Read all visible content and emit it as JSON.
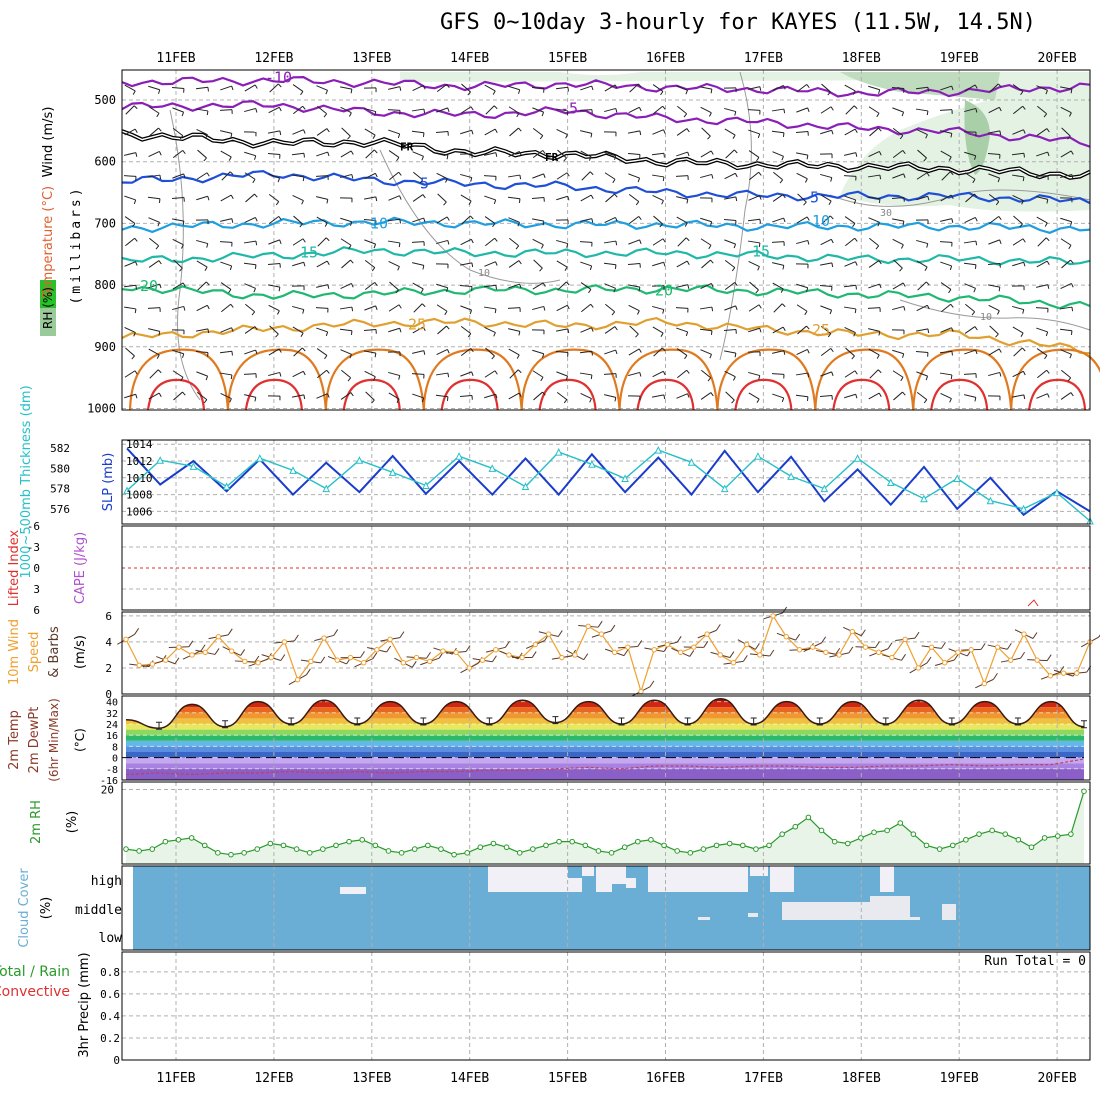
{
  "title": "GFS 0~10day 3-hourly for KAYES (11.5W, 14.5N)",
  "dates": [
    "11FEB",
    "12FEB",
    "13FEB",
    "14FEB",
    "15FEB",
    "16FEB",
    "17FEB",
    "18FEB",
    "19FEB",
    "20FEB"
  ],
  "colors": {
    "purple": "#8a1fb8",
    "blue": "#1f4fd6",
    "lightblue": "#1f9ee0",
    "teal": "#1fb8a8",
    "green": "#1fb870",
    "orange": "#e0a030",
    "darkorange": "#e07a20",
    "red": "#e03030",
    "cyan": "#27c0c8",
    "slp": "#1a3ccc",
    "wind10": "#f0a030",
    "rh2m": "#2a9a2a",
    "cloudbg": "#6aaed6",
    "cloudclear": "#f2f0f7"
  },
  "chart_data": [
    {
      "type": "line",
      "panel": "upper-air",
      "ylabel_wind": "Wind (m/s)",
      "ylabel_temp": "Temperature (°C)",
      "ylabel_rh": "RH (%)",
      "ylabel_units": "(millibars)",
      "yticks": [
        "500",
        "600",
        "700",
        "800",
        "900",
        "1000"
      ],
      "ylim": [
        1000,
        450
      ],
      "x": [
        "11FEB",
        "12FEB",
        "13FEB",
        "14FEB",
        "15FEB",
        "16FEB",
        "17FEB",
        "18FEB",
        "19FEB",
        "20FEB"
      ],
      "isotherm_labels": [
        "-10",
        "-5",
        "FR",
        "5",
        "10",
        "15",
        "20",
        "25"
      ],
      "rh_contour_labels": [
        "10",
        "30"
      ],
      "series": [
        {
          "name": "-10",
          "color": "purple",
          "values": [
            470,
            468,
            472,
            478,
            474,
            480,
            483,
            489,
            486,
            480
          ]
        },
        {
          "name": "-5",
          "color": "purple",
          "values": [
            510,
            508,
            520,
            524,
            518,
            530,
            536,
            546,
            552,
            565
          ]
        },
        {
          "name": "FR",
          "color": "black",
          "values": [
            560,
            570,
            568,
            585,
            588,
            600,
            605,
            608,
            612,
            620
          ]
        },
        {
          "name": "5",
          "color": "blue",
          "values": [
            628,
            620,
            630,
            636,
            640,
            650,
            655,
            656,
            656,
            662
          ]
        },
        {
          "name": "10",
          "color": "lightblue",
          "values": [
            705,
            700,
            698,
            700,
            702,
            702,
            705,
            705,
            705,
            708
          ]
        },
        {
          "name": "15",
          "color": "teal",
          "values": [
            758,
            752,
            744,
            748,
            748,
            748,
            752,
            758,
            758,
            762
          ]
        },
        {
          "name": "20",
          "color": "green",
          "values": [
            808,
            818,
            814,
            808,
            808,
            806,
            810,
            815,
            820,
            830
          ]
        },
        {
          "name": "25",
          "color": "orange",
          "values": [
            880,
            870,
            862,
            860,
            866,
            860,
            872,
            880,
            880,
            900
          ]
        }
      ]
    },
    {
      "type": "line",
      "panel": "thickness-slp",
      "ylabel_left": "1000~500mb Thickness (dm)",
      "ylabel_right": "SLP (mb)",
      "yticks_left": [
        "576",
        "578",
        "580",
        "582"
      ],
      "yticks_right": [
        "1006",
        "1008",
        "1010",
        "1012",
        "1014"
      ],
      "ylim_left": [
        574.5,
        582.8
      ],
      "ylim_right": [
        1004.5,
        1014.5
      ],
      "series": [
        {
          "name": "SLP (mb)",
          "color": "slp",
          "values": [
            1013.5,
            1009.2,
            1012.0,
            1008.4,
            1012.2,
            1008.0,
            1011.8,
            1008.3,
            1012.6,
            1008.1,
            1012.0,
            1008.0,
            1012.3,
            1008.0,
            1012.8,
            1008.3,
            1012.4,
            1008.0,
            1013.2,
            1008.3,
            1012.5,
            1007.2,
            1011.0,
            1006.8,
            1011.3,
            1006.3,
            1010.0,
            1005.6,
            1008.4,
            1006.0
          ]
        },
        {
          "name": "1000~500mb Thickness (dm)",
          "color": "cyan",
          "values": [
            577.8,
            580.8,
            580.2,
            578.2,
            581.0,
            579.8,
            578.0,
            580.8,
            579.6,
            578.3,
            581.2,
            580.0,
            578.2,
            581.6,
            580.4,
            579.0,
            581.8,
            580.6,
            578.0,
            581.2,
            579.2,
            578.0,
            581.0,
            578.6,
            577.0,
            579.0,
            576.8,
            576.0,
            577.6,
            574.8
          ]
        }
      ]
    },
    {
      "type": "line",
      "panel": "stability",
      "ylabel_left": "Lifted Index",
      "ylabel_right": "CAPE (J/kg)",
      "yticks": [
        "-6",
        "-3",
        "0",
        "3",
        "6"
      ],
      "ylim": [
        -6,
        6
      ],
      "series": []
    },
    {
      "type": "line",
      "panel": "wind10m",
      "ylabel": "10m Wind Speed & Barbs",
      "yunit": "(m/s)",
      "yticks": [
        "0",
        "2",
        "4",
        "6"
      ],
      "ylim": [
        0,
        6.3
      ],
      "series": [
        {
          "name": "10m Wind Speed",
          "color": "wind10",
          "values": [
            4.2,
            2.2,
            2.3,
            2.6,
            3.6,
            3.0,
            3.2,
            4.4,
            3.3,
            2.5,
            2.4,
            2.8,
            4.0,
            1.1,
            2.5,
            4.3,
            2.6,
            2.8,
            2.4,
            3.4,
            4.2,
            2.4,
            2.8,
            2.5,
            3.3,
            3.2,
            2.0,
            2.6,
            3.4,
            3.0,
            2.8,
            3.8,
            4.6,
            2.8,
            3.0,
            5.2,
            4.6,
            3.2,
            3.6,
            0.2,
            3.4,
            3.8,
            3.2,
            3.6,
            4.6,
            3.0,
            2.4,
            3.8,
            3.0,
            6.0,
            4.4,
            3.4,
            3.6,
            3.2,
            3.0,
            4.8,
            3.6,
            3.2,
            2.8,
            4.2,
            2.0,
            3.6,
            2.4,
            3.2,
            3.4,
            0.8,
            3.6,
            2.6,
            4.6,
            2.6,
            1.4,
            1.6,
            1.6,
            4.0
          ]
        }
      ]
    },
    {
      "type": "area",
      "panel": "temp2m",
      "ylabel": "2m Temp 2m DewPt (6hr Min/Max) (°C)",
      "yticks": [
        "-16",
        "-8",
        "0",
        "8",
        "16",
        "24",
        "32",
        "40"
      ],
      "ylim": [
        -16,
        44
      ],
      "series": [
        {
          "name": "2m Temp",
          "color": "darkred",
          "values": [
            27,
            21,
            38,
            22,
            40,
            24,
            41,
            24,
            40,
            24,
            40,
            24,
            41,
            25,
            40,
            24,
            41,
            24,
            42,
            24,
            40,
            24,
            40,
            24,
            41,
            24,
            40,
            24,
            40,
            22
          ]
        },
        {
          "name": "2m DewPt",
          "color": "brown",
          "values": [
            -12,
            -11,
            -12,
            -11,
            -11,
            -10,
            -11,
            -10,
            -11,
            -10,
            -10,
            -9,
            -9,
            -8,
            -7,
            -8,
            -6,
            -6,
            -7,
            -6,
            -6,
            -7,
            -7,
            -6,
            -6,
            -5,
            -6,
            -5,
            -5,
            -1
          ]
        }
      ]
    },
    {
      "type": "area",
      "panel": "rh2m",
      "ylabel": "2m RH",
      "yunit": "(%)",
      "yticks": [
        "20"
      ],
      "ylim": [
        0,
        22
      ],
      "series": [
        {
          "name": "2m RH",
          "color": "rh2m",
          "values": [
            4,
            3.5,
            4,
            6,
            6.5,
            7,
            5,
            3,
            2.5,
            3,
            4,
            5.5,
            5,
            4,
            3,
            4,
            5,
            6,
            6.5,
            5,
            3.5,
            3,
            4,
            5,
            4,
            2.5,
            3,
            4.5,
            5.5,
            4.5,
            3,
            4,
            5,
            6,
            6,
            5,
            3.5,
            3,
            4.5,
            6,
            6.5,
            5,
            3.5,
            3,
            4,
            5,
            5.5,
            5,
            4,
            5,
            8,
            10,
            12.5,
            9,
            6,
            5.5,
            7,
            8.5,
            9,
            11,
            8,
            5,
            4,
            5,
            6.5,
            8,
            9,
            8,
            6.5,
            4.5,
            7,
            7.5,
            8,
            19.5
          ]
        }
      ]
    },
    {
      "type": "heatmap",
      "panel": "cloud",
      "ylabel": "Cloud Cover",
      "yunit": "(%)",
      "rows": [
        "high",
        "middle",
        "low"
      ]
    },
    {
      "type": "bar",
      "panel": "precip",
      "ylabel_left": "Total / Rain",
      "ylabel_left2": "Convective",
      "ylabel": "3hr Precip (mm)",
      "yticks": [
        "0",
        "0.2",
        "0.4",
        "0.6",
        "0.8"
      ],
      "ylim": [
        0,
        0.98
      ],
      "run_total": "Run Total = 0",
      "values": []
    }
  ]
}
